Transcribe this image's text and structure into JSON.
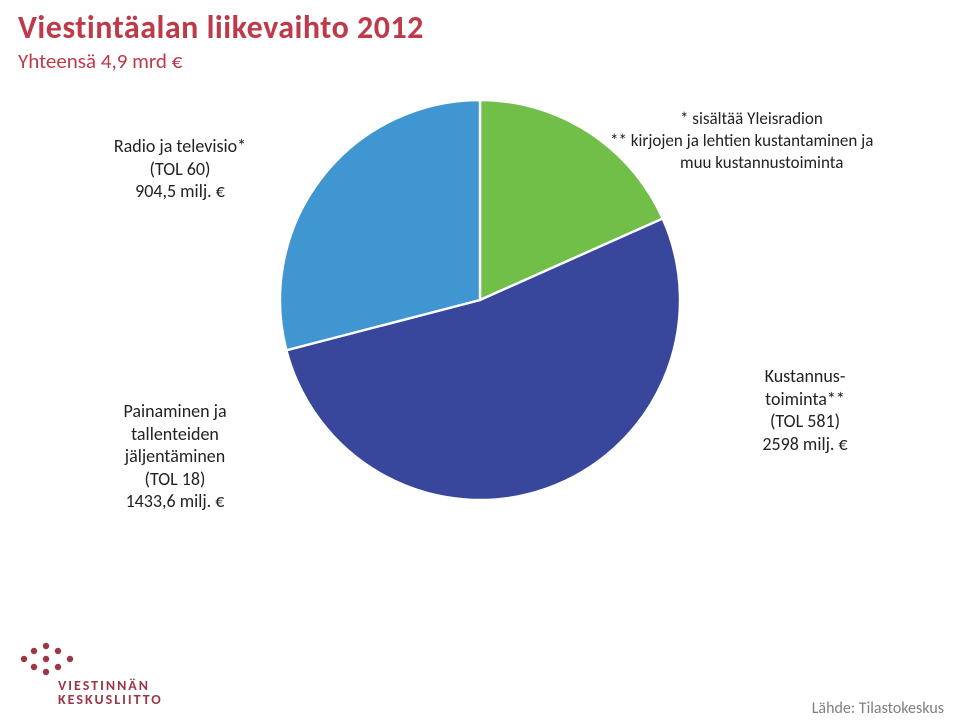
{
  "title": "Viestintäalan liikevaihto 2012",
  "subtitle": "Yhteensä 4,9 mrd €",
  "chart": {
    "type": "pie",
    "background_color": "#ffffff",
    "start_angle_deg": -90,
    "slices": [
      {
        "id": "radio_tv",
        "value": 904.5,
        "color": "#71be48"
      },
      {
        "id": "kustannus",
        "value": 2598,
        "color": "#38479b"
      },
      {
        "id": "painaminen",
        "value": 1433.6,
        "color": "#4096d0"
      }
    ]
  },
  "labels": {
    "radio_tv": {
      "line1": "Radio ja televisio*",
      "line2": "(TOL 60)",
      "line3": "904,5 milj. €"
    },
    "kustannus": {
      "line1": "Kustannus-",
      "line2": "toiminta**",
      "line3": "(TOL 581)",
      "line4": "2598 milj. €"
    },
    "painaminen": {
      "line1": "Painaminen ja",
      "line2": "tallenteiden",
      "line3": "jäljentäminen",
      "line4": "(TOL 18)",
      "line5": "1433,6 milj. €"
    }
  },
  "notes": {
    "line1": "* sisältää Yleisradion",
    "line2": "** kirjojen ja lehtien kustantaminen ja",
    "line3": "muu kustannustoiminta"
  },
  "source": "Lähde: Tilastokeskus",
  "logo": {
    "line1": "VIESTINNÄN",
    "line2": "KESKUSLIITTO",
    "dot_color": "#9b3745"
  },
  "fonts": {
    "title_pt": 32,
    "subtitle_pt": 21,
    "label_pt": 18,
    "note_pt": 17,
    "source_pt": 16,
    "logo_pt": 14
  }
}
